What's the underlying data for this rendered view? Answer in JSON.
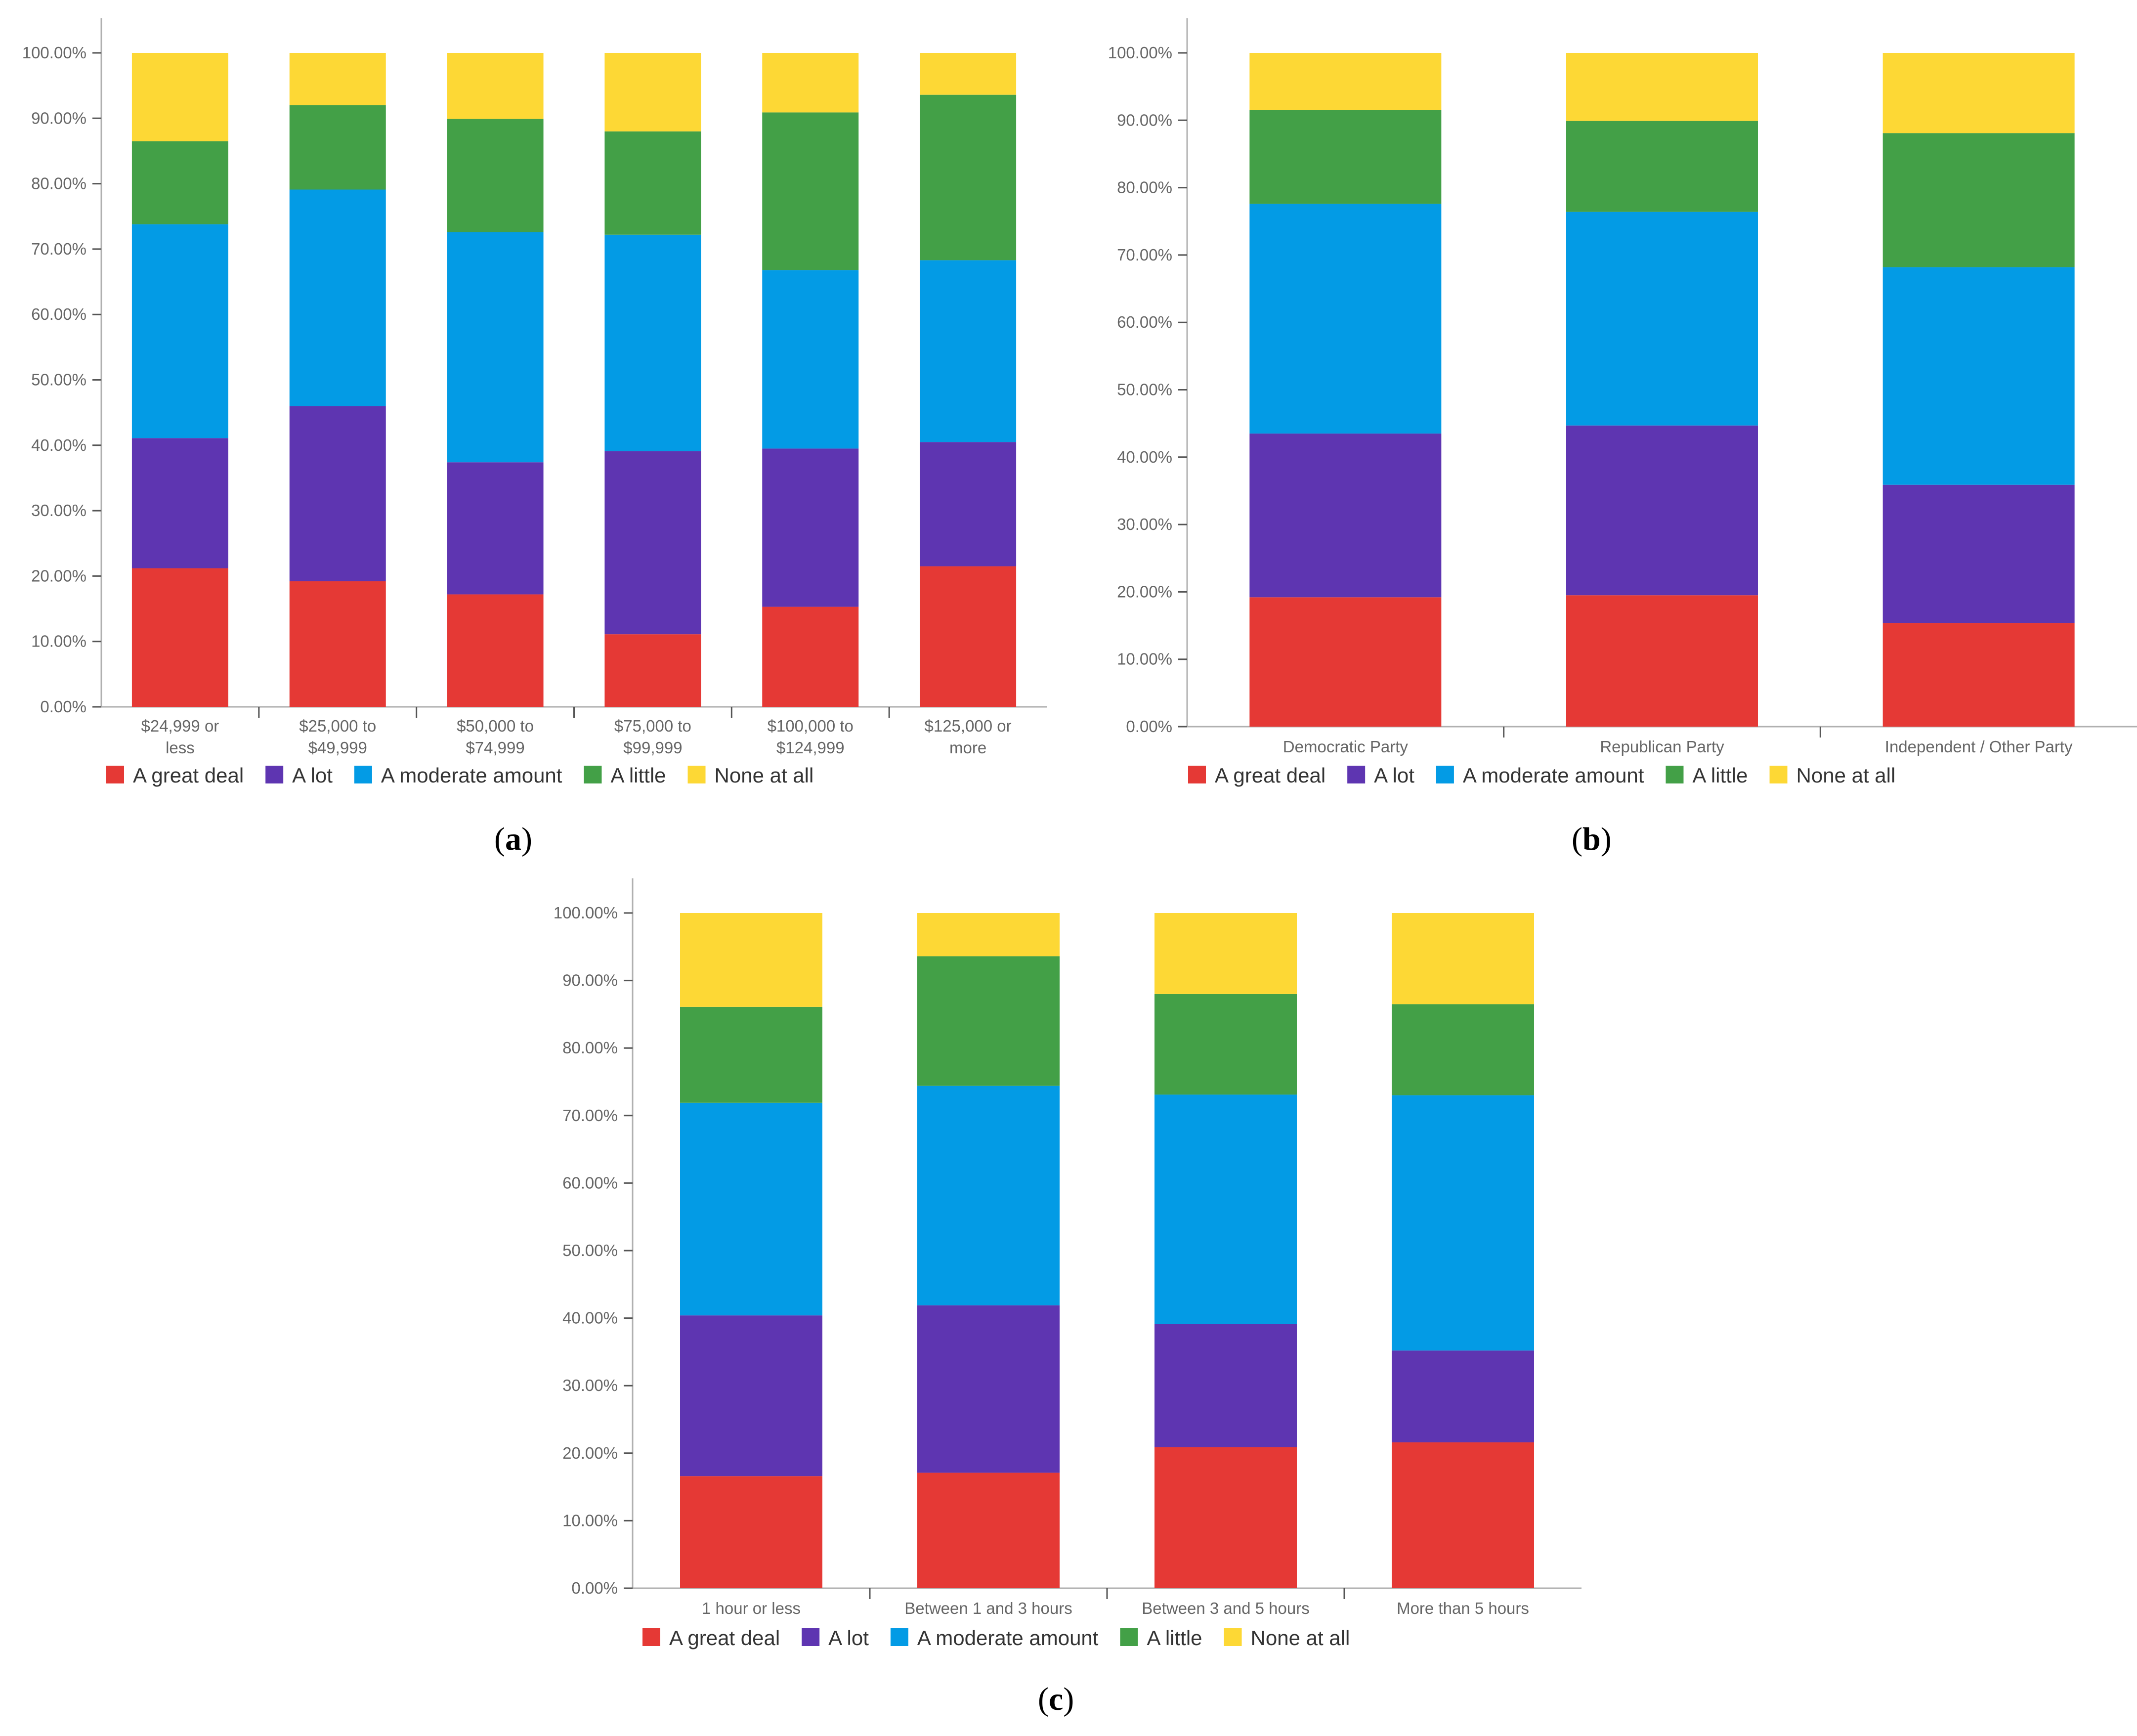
{
  "legend": [
    "A great deal",
    "A lot",
    "A moderate amount",
    "A little",
    "None at all"
  ],
  "colors": {
    "A great deal": "#e53935",
    "A lot": "#5e35b1",
    "A moderate amount": "#039be5",
    "A little": "#43a047",
    "None at all": "#fdd835",
    "axis": "#b0b0b0",
    "tick_text": "#666666"
  },
  "labels": {
    "a": "a",
    "b": "b",
    "c": "c"
  },
  "chart_data": [
    {
      "panel": "a",
      "type": "bar",
      "stacked": true,
      "title": "",
      "xlabel": "",
      "ylabel": "",
      "ylim": [
        0,
        100
      ],
      "y_ticks": [
        "0.00%",
        "10.00%",
        "20.00%",
        "30.00%",
        "40.00%",
        "50.00%",
        "60.00%",
        "70.00%",
        "80.00%",
        "90.00%",
        "100.00%"
      ],
      "categories": [
        [
          "$24,999 or",
          "less"
        ],
        [
          "$25,000 to",
          "$49,999"
        ],
        [
          "$50,000 to",
          "$74,999"
        ],
        [
          "$75,000 to",
          "$99,999"
        ],
        [
          "$100,000 to",
          "$124,999"
        ],
        [
          "$125,000 or",
          "more"
        ]
      ],
      "series": [
        {
          "name": "A great deal",
          "values": [
            21.2,
            19.2,
            17.2,
            11.1,
            15.3,
            21.5
          ]
        },
        {
          "name": "A lot",
          "values": [
            19.9,
            26.8,
            20.2,
            28.0,
            24.2,
            19.0
          ]
        },
        {
          "name": "A moderate amount",
          "values": [
            32.7,
            33.1,
            35.2,
            33.1,
            27.3,
            27.8
          ]
        },
        {
          "name": "A little",
          "values": [
            12.7,
            12.9,
            17.3,
            15.8,
            24.1,
            25.3
          ]
        },
        {
          "name": "None at all",
          "values": [
            13.5,
            8.0,
            10.1,
            12.0,
            9.1,
            6.4
          ]
        }
      ],
      "legend_position": "bottom"
    },
    {
      "panel": "b",
      "type": "bar",
      "stacked": true,
      "title": "",
      "xlabel": "",
      "ylabel": "",
      "ylim": [
        0,
        100
      ],
      "y_ticks": [
        "0.00%",
        "10.00%",
        "20.00%",
        "30.00%",
        "40.00%",
        "50.00%",
        "60.00%",
        "70.00%",
        "80.00%",
        "90.00%",
        "100.00%"
      ],
      "categories": [
        [
          "Democratic Party"
        ],
        [
          "Republican Party"
        ],
        [
          "Independent / Other Party"
        ]
      ],
      "series": [
        {
          "name": "A great deal",
          "values": [
            19.2,
            19.5,
            15.4
          ]
        },
        {
          "name": "A lot",
          "values": [
            24.3,
            25.2,
            20.5
          ]
        },
        {
          "name": "A moderate amount",
          "values": [
            34.1,
            31.7,
            32.3
          ]
        },
        {
          "name": "A little",
          "values": [
            13.9,
            13.5,
            19.9
          ]
        },
        {
          "name": "None at all",
          "values": [
            8.5,
            10.1,
            11.9
          ]
        }
      ],
      "legend_position": "bottom"
    },
    {
      "panel": "c",
      "type": "bar",
      "stacked": true,
      "title": "",
      "xlabel": "",
      "ylabel": "",
      "ylim": [
        0,
        100
      ],
      "y_ticks": [
        "0.00%",
        "10.00%",
        "20.00%",
        "30.00%",
        "40.00%",
        "50.00%",
        "60.00%",
        "70.00%",
        "80.00%",
        "90.00%",
        "100.00%"
      ],
      "categories": [
        [
          "1 hour or less"
        ],
        [
          "Between 1 and 3 hours"
        ],
        [
          "Between 3 and 5 hours"
        ],
        [
          "More than 5 hours"
        ]
      ],
      "series": [
        {
          "name": "A great deal",
          "values": [
            16.6,
            17.1,
            20.9,
            21.6
          ]
        },
        {
          "name": "A lot",
          "values": [
            23.8,
            24.8,
            18.2,
            13.6
          ]
        },
        {
          "name": "A moderate amount",
          "values": [
            31.5,
            32.5,
            34.0,
            37.8
          ]
        },
        {
          "name": "A little",
          "values": [
            14.2,
            19.2,
            14.9,
            13.5
          ]
        },
        {
          "name": "None at all",
          "values": [
            13.9,
            6.4,
            12.0,
            13.5
          ]
        }
      ],
      "legend_position": "bottom"
    }
  ]
}
